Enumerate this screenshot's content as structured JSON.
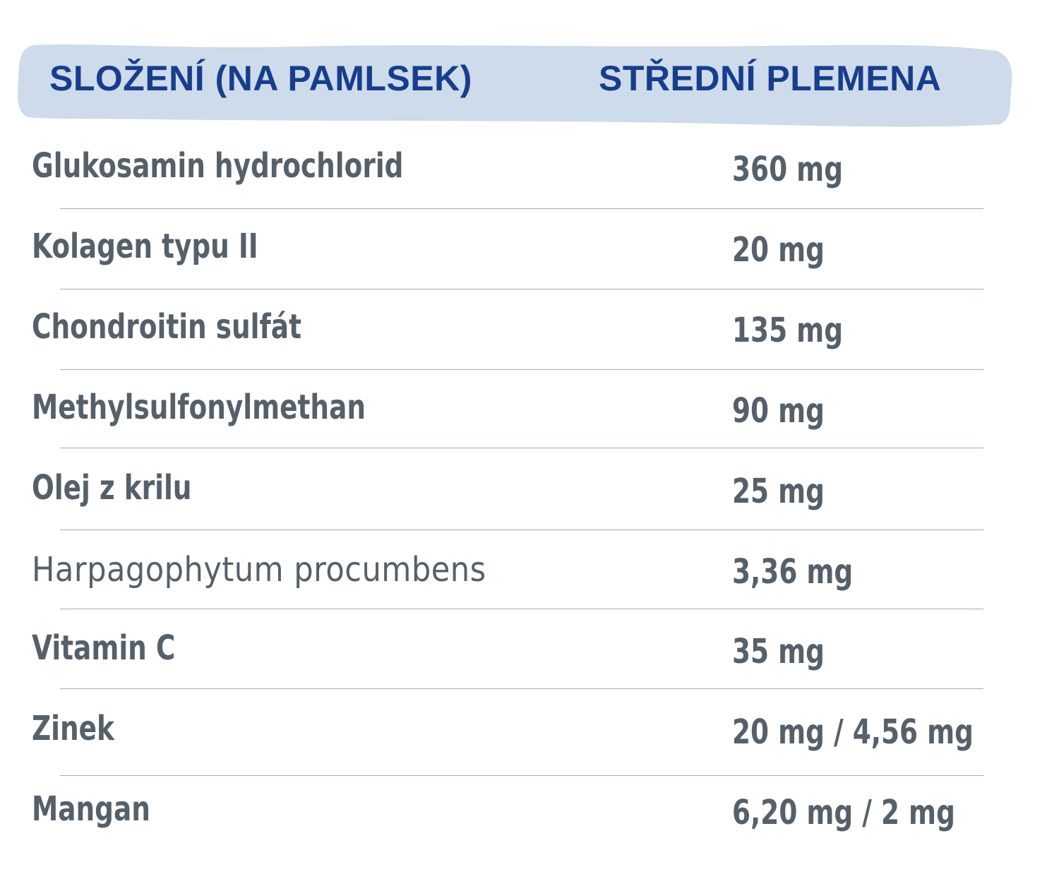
{
  "header": {
    "left_label": "SLOŽENÍ (NA PAMLSEK)",
    "right_label": "STŘEDNÍ PLEMENA",
    "band_color": "#cddbea",
    "text_color": "#173d8c"
  },
  "rows": [
    {
      "name": "Glukosamin hydrochlorid",
      "value": "360 mg"
    },
    {
      "name": "Kolagen typu II",
      "value": "20 mg"
    },
    {
      "name": "Chondroitin sulfát",
      "value": "135 mg"
    },
    {
      "name": "Methylsulfonylmethan",
      "value": "90 mg"
    },
    {
      "name": "Olej z krilu",
      "value": "25 mg"
    },
    {
      "name": "Harpagophytum procumbens",
      "value": "3,36 mg"
    },
    {
      "name": "Vitamin C",
      "value": "35 mg"
    },
    {
      "name": "Zinek",
      "value": "20 mg / 4,56 mg"
    },
    {
      "name": "Mangan",
      "value": "6,20 mg / 2 mg"
    }
  ],
  "colors": {
    "body_text": "#55606a",
    "divider": "#9aadc6"
  }
}
